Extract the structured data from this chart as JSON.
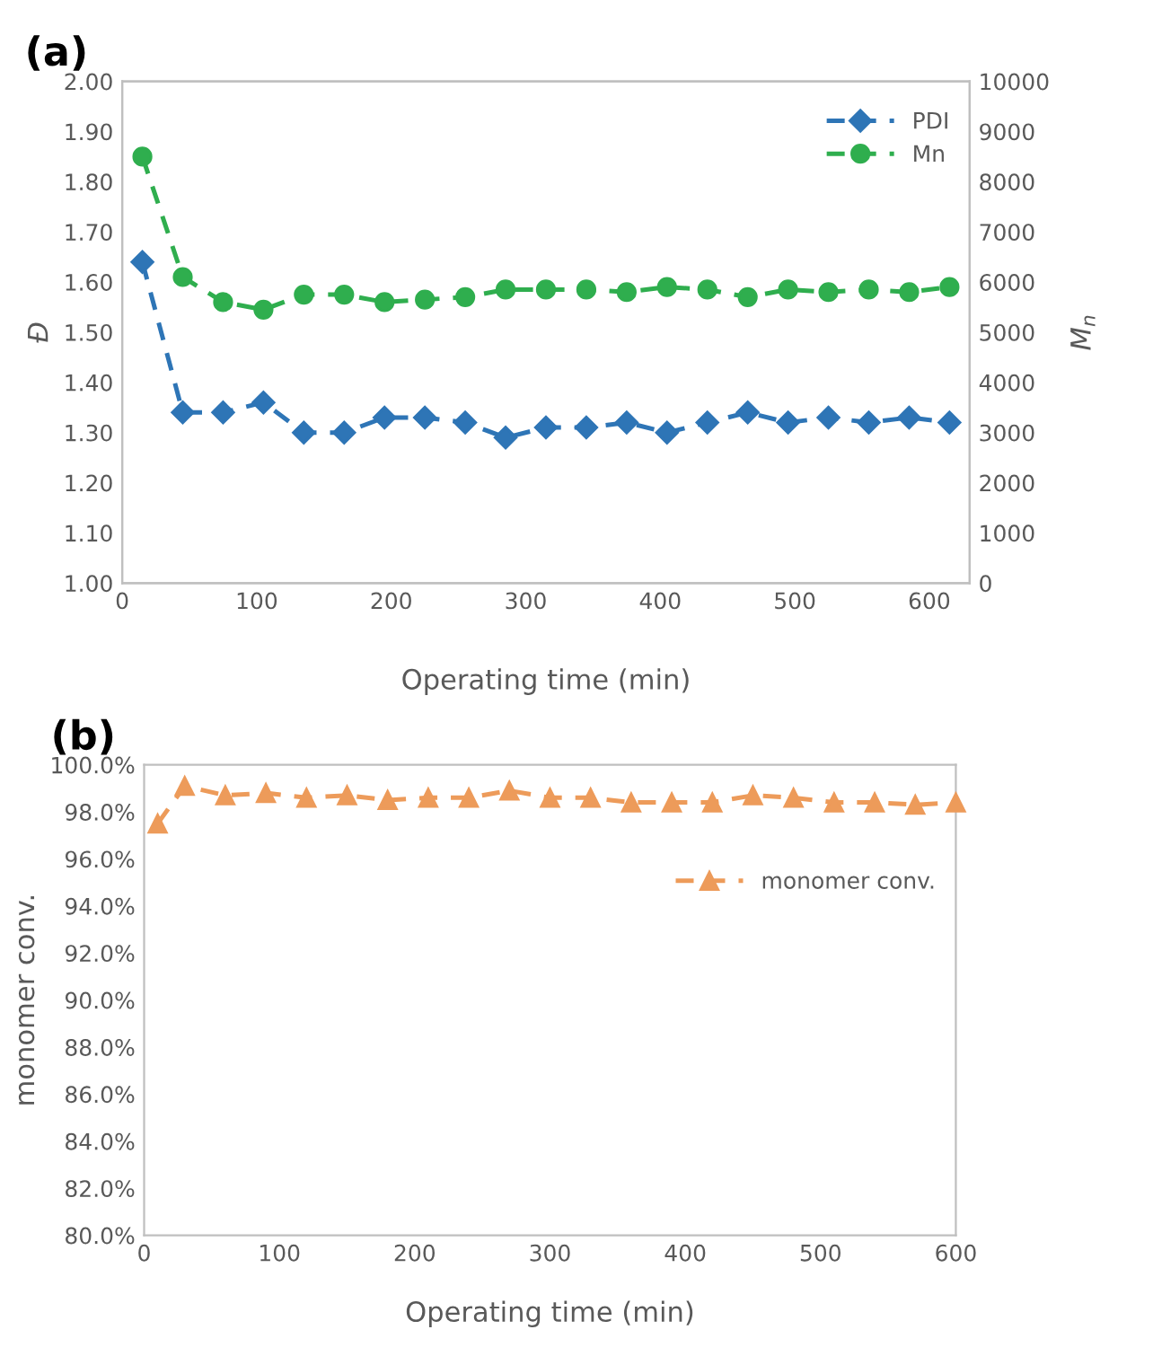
{
  "chart_data": [
    {
      "type": "line",
      "title": "(a)",
      "xlabel": "Operating time (min)",
      "ylabel": "Đ",
      "y2label": "M$_{n}$",
      "xlim": [
        0,
        630
      ],
      "xticks": [
        0,
        100,
        200,
        300,
        400,
        500,
        600
      ],
      "ylim": [
        1.0,
        2.0
      ],
      "yticks": [
        {
          "value": 1.0,
          "label": "1.00"
        },
        {
          "value": 1.1,
          "label": "1.10"
        },
        {
          "value": 1.2,
          "label": "1.20"
        },
        {
          "value": 1.3,
          "label": "1.30"
        },
        {
          "value": 1.4,
          "label": "1.40"
        },
        {
          "value": 1.5,
          "label": "1.50"
        },
        {
          "value": 1.6,
          "label": "1.60"
        },
        {
          "value": 1.7,
          "label": "1.70"
        },
        {
          "value": 1.8,
          "label": "1.80"
        },
        {
          "value": 1.9,
          "label": "1.90"
        },
        {
          "value": 2.0,
          "label": "2.00"
        }
      ],
      "y2lim": [
        0,
        10000
      ],
      "y2ticks": [
        0,
        1000,
        2000,
        3000,
        4000,
        5000,
        6000,
        7000,
        8000,
        9000,
        10000
      ],
      "grid": false,
      "legend": "top right",
      "line_style": "dashed",
      "x": [
        15,
        45,
        75,
        105,
        135,
        165,
        195,
        225,
        255,
        285,
        315,
        345,
        375,
        405,
        435,
        465,
        495,
        525,
        555,
        585,
        615
      ],
      "series": [
        {
          "name": "PDI",
          "color": "#2e75b6",
          "marker": "diamond",
          "values": [
            1.64,
            1.34,
            1.34,
            1.36,
            1.3,
            1.3,
            1.33,
            1.33,
            1.32,
            1.29,
            1.31,
            1.31,
            1.32,
            1.3,
            1.32,
            1.34,
            1.32,
            1.33,
            1.32,
            1.33,
            1.32
          ]
        },
        {
          "name": "Mn",
          "color": "#2fae4e",
          "marker": "circle",
          "axis": "y2",
          "values": [
            8500,
            6100,
            5600,
            5450,
            5750,
            5750,
            5600,
            5650,
            5700,
            5850,
            5850,
            5850,
            5800,
            5900,
            5850,
            5700,
            5850,
            5800,
            5850,
            5800,
            5900
          ]
        }
      ]
    },
    {
      "type": "line",
      "title": "(b)",
      "xlabel": "Operating time (min)",
      "ylabel": "monomer conv.",
      "xlim": [
        0,
        600
      ],
      "xticks": [
        0,
        100,
        200,
        300,
        400,
        500,
        600
      ],
      "ylim": [
        80,
        100
      ],
      "yticks": [
        {
          "value": 80,
          "label": "80.0%"
        },
        {
          "value": 82,
          "label": "82.0%"
        },
        {
          "value": 84,
          "label": "84.0%"
        },
        {
          "value": 86,
          "label": "86.0%"
        },
        {
          "value": 88,
          "label": "88.0%"
        },
        {
          "value": 90,
          "label": "90.0%"
        },
        {
          "value": 92,
          "label": "92.0%"
        },
        {
          "value": 94,
          "label": "94.0%"
        },
        {
          "value": 96,
          "label": "96.0%"
        },
        {
          "value": 98,
          "label": "98.0%"
        },
        {
          "value": 100,
          "label": "100.0%"
        }
      ],
      "grid": false,
      "legend": "right",
      "line_style": "dashed",
      "x": [
        10,
        30,
        60,
        90,
        120,
        150,
        180,
        210,
        240,
        270,
        300,
        330,
        360,
        390,
        420,
        450,
        480,
        510,
        540,
        570,
        600
      ],
      "series": [
        {
          "name": "monomer conv.",
          "color": "#ed9b5a",
          "marker": "triangle",
          "values": [
            97.5,
            99.1,
            98.7,
            98.8,
            98.6,
            98.7,
            98.5,
            98.6,
            98.6,
            98.9,
            98.6,
            98.6,
            98.4,
            98.4,
            98.4,
            98.7,
            98.6,
            98.4,
            98.4,
            98.3,
            98.4
          ]
        }
      ]
    }
  ]
}
